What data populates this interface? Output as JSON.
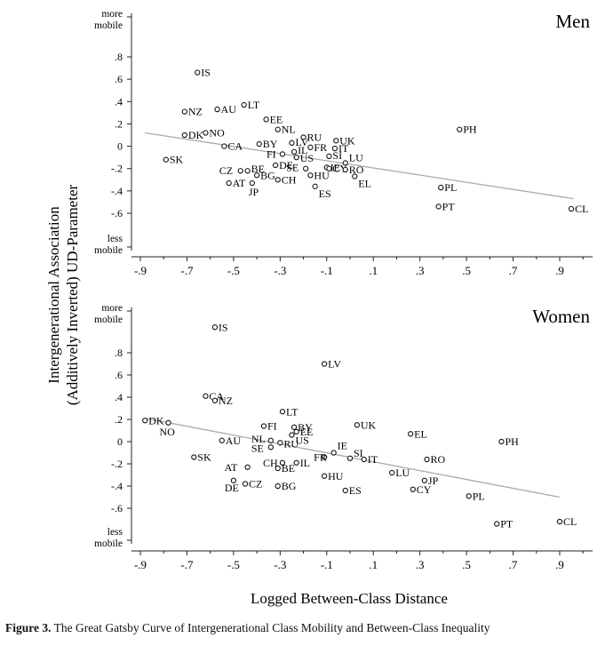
{
  "figure": {
    "ylabel_line1": "Intergenerational Association",
    "ylabel_line2": "(Additively Inverted) UD-Parameter",
    "xlabel": "Logged Between-Class Distance",
    "caption_label": "Figure 3.",
    "caption_text": "The Great Gatsby Curve of Intergenerational Class Mobility and Between-Class Inequality"
  },
  "chart_data": [
    {
      "type": "scatter",
      "title": "Men",
      "xlim": [
        -0.95,
        1.02
      ],
      "ylim": [
        -0.75,
        0.95
      ],
      "xticks": [
        -0.9,
        -0.7,
        -0.5,
        -0.3,
        -0.1,
        0.1,
        0.3,
        0.5,
        0.7,
        0.9
      ],
      "xtick_labels": [
        "-.9",
        "-.7",
        "-.5",
        "-.3",
        "-.1",
        ".1",
        ".3",
        ".5",
        ".7",
        ".9"
      ],
      "yticks": [
        0.8,
        0.6,
        0.4,
        0.2,
        0,
        -0.2,
        -0.4,
        -0.6
      ],
      "ytick_labels": [
        ".8",
        ".6",
        ".4",
        ".2",
        "0",
        "-.2",
        "-.4",
        "-.6"
      ],
      "y_top_label": [
        "more",
        "mobile"
      ],
      "y_bottom_label": [
        "less",
        "mobile"
      ],
      "fit_line": [
        [
          -0.88,
          0.12
        ],
        [
          0.96,
          -0.47
        ]
      ],
      "points": [
        {
          "label": "IS",
          "x": -0.655,
          "y": 0.66
        },
        {
          "label": "LT",
          "x": -0.455,
          "y": 0.37
        },
        {
          "label": "AU",
          "x": -0.57,
          "y": 0.33
        },
        {
          "label": "NZ",
          "x": -0.71,
          "y": 0.31
        },
        {
          "label": "EE",
          "x": -0.36,
          "y": 0.24
        },
        {
          "label": "NL",
          "x": -0.31,
          "y": 0.15
        },
        {
          "label": "DK",
          "x": -0.71,
          "y": 0.1
        },
        {
          "label": "NO",
          "x": -0.62,
          "y": 0.12
        },
        {
          "label": "RU",
          "x": -0.2,
          "y": 0.08
        },
        {
          "label": "UK",
          "x": -0.06,
          "y": 0.05
        },
        {
          "label": "BY",
          "x": -0.39,
          "y": 0.02
        },
        {
          "label": "LV",
          "x": -0.25,
          "y": 0.03
        },
        {
          "label": "CA",
          "x": -0.54,
          "y": 0.0
        },
        {
          "label": "FR",
          "x": -0.17,
          "y": -0.01
        },
        {
          "label": "IT",
          "x": -0.065,
          "y": -0.02
        },
        {
          "label": "FI",
          "x": -0.29,
          "y": -0.07
        },
        {
          "label": "IL",
          "x": -0.24,
          "y": -0.05
        },
        {
          "label": "US",
          "x": -0.23,
          "y": -0.1
        },
        {
          "label": "SI",
          "x": -0.09,
          "y": -0.09
        },
        {
          "label": "LU",
          "x": -0.02,
          "y": -0.15
        },
        {
          "label": "SK",
          "x": -0.79,
          "y": -0.12
        },
        {
          "label": "DE",
          "x": -0.32,
          "y": -0.17
        },
        {
          "label": "SE",
          "x": -0.19,
          "y": -0.2
        },
        {
          "label": "IE",
          "x": -0.1,
          "y": -0.19
        },
        {
          "label": "CY",
          "x": -0.09,
          "y": -0.2
        },
        {
          "label": "RO",
          "x": -0.02,
          "y": -0.21
        },
        {
          "label": "EL",
          "x": 0.02,
          "y": -0.27
        },
        {
          "label": "CZ",
          "x": -0.47,
          "y": -0.22
        },
        {
          "label": "BE",
          "x": -0.44,
          "y": -0.22
        },
        {
          "label": "BG",
          "x": -0.4,
          "y": -0.26
        },
        {
          "label": "AT",
          "x": -0.52,
          "y": -0.33
        },
        {
          "label": "JP",
          "x": -0.42,
          "y": -0.33
        },
        {
          "label": "CH",
          "x": -0.31,
          "y": -0.3
        },
        {
          "label": "HU",
          "x": -0.17,
          "y": -0.26
        },
        {
          "label": "ES",
          "x": -0.15,
          "y": -0.36
        },
        {
          "label": "PH",
          "x": 0.47,
          "y": 0.15
        },
        {
          "label": "PL",
          "x": 0.39,
          "y": -0.37
        },
        {
          "label": "PT",
          "x": 0.38,
          "y": -0.54
        },
        {
          "label": "CL",
          "x": 0.95,
          "y": -0.56
        }
      ]
    },
    {
      "type": "scatter",
      "title": "Women",
      "xlim": [
        -0.95,
        1.02
      ],
      "ylim": [
        -0.75,
        0.95
      ],
      "xticks": [
        -0.9,
        -0.7,
        -0.5,
        -0.3,
        -0.1,
        0.1,
        0.3,
        0.5,
        0.7,
        0.9
      ],
      "xtick_labels": [
        "-.9",
        "-.7",
        "-.5",
        "-.3",
        "-.1",
        ".1",
        ".3",
        ".5",
        ".7",
        ".9"
      ],
      "yticks": [
        0.8,
        0.6,
        0.4,
        0.2,
        0,
        -0.2,
        -0.4,
        -0.6
      ],
      "ytick_labels": [
        ".8",
        ".6",
        ".4",
        ".2",
        "0",
        "-.2",
        "-.4",
        "-.6"
      ],
      "y_top_label": [
        "more",
        "mobile"
      ],
      "y_bottom_label": [
        "less",
        "mobile"
      ],
      "fit_line": [
        [
          -0.88,
          0.21
        ],
        [
          0.9,
          -0.5
        ]
      ],
      "points": [
        {
          "label": "IS",
          "x": -0.58,
          "y": 1.03
        },
        {
          "label": "LV",
          "x": -0.11,
          "y": 0.7
        },
        {
          "label": "CA",
          "x": -0.62,
          "y": 0.41
        },
        {
          "label": "NZ",
          "x": -0.58,
          "y": 0.37
        },
        {
          "label": "LT",
          "x": -0.29,
          "y": 0.27
        },
        {
          "label": "DK",
          "x": -0.88,
          "y": 0.19
        },
        {
          "label": "NO",
          "x": -0.78,
          "y": 0.17
        },
        {
          "label": "BY",
          "x": -0.24,
          "y": 0.13
        },
        {
          "label": "EE",
          "x": -0.23,
          "y": 0.09
        },
        {
          "label": "FI",
          "x": -0.37,
          "y": 0.14
        },
        {
          "label": "UK",
          "x": 0.03,
          "y": 0.15
        },
        {
          "label": "EL",
          "x": 0.26,
          "y": 0.07
        },
        {
          "label": "AU",
          "x": -0.55,
          "y": 0.01
        },
        {
          "label": "NL",
          "x": -0.34,
          "y": 0.01
        },
        {
          "label": "RU",
          "x": -0.3,
          "y": -0.01
        },
        {
          "label": "US",
          "x": -0.25,
          "y": 0.06
        },
        {
          "label": "SE",
          "x": -0.34,
          "y": -0.05
        },
        {
          "label": "PH",
          "x": 0.65,
          "y": 0.0
        },
        {
          "label": "IE",
          "x": -0.07,
          "y": -0.1
        },
        {
          "label": "FR",
          "x": -0.11,
          "y": -0.14
        },
        {
          "label": "SI",
          "x": 0.0,
          "y": -0.15
        },
        {
          "label": "IT",
          "x": 0.06,
          "y": -0.16
        },
        {
          "label": "RO",
          "x": 0.33,
          "y": -0.16
        },
        {
          "label": "SK",
          "x": -0.67,
          "y": -0.14
        },
        {
          "label": "CH",
          "x": -0.29,
          "y": -0.19
        },
        {
          "label": "IL",
          "x": -0.23,
          "y": -0.19
        },
        {
          "label": "AT",
          "x": -0.44,
          "y": -0.23
        },
        {
          "label": "BE",
          "x": -0.31,
          "y": -0.24
        },
        {
          "label": "LU",
          "x": 0.18,
          "y": -0.28
        },
        {
          "label": "HU",
          "x": -0.11,
          "y": -0.31
        },
        {
          "label": "JP",
          "x": 0.32,
          "y": -0.35
        },
        {
          "label": "DE",
          "x": -0.5,
          "y": -0.35
        },
        {
          "label": "CZ",
          "x": -0.45,
          "y": -0.38
        },
        {
          "label": "BG",
          "x": -0.31,
          "y": -0.4
        },
        {
          "label": "ES",
          "x": -0.02,
          "y": -0.44
        },
        {
          "label": "CY",
          "x": 0.27,
          "y": -0.43
        },
        {
          "label": "PL",
          "x": 0.51,
          "y": -0.49
        },
        {
          "label": "PT",
          "x": 0.63,
          "y": -0.74
        },
        {
          "label": "CL",
          "x": 0.9,
          "y": -0.72
        }
      ]
    }
  ]
}
